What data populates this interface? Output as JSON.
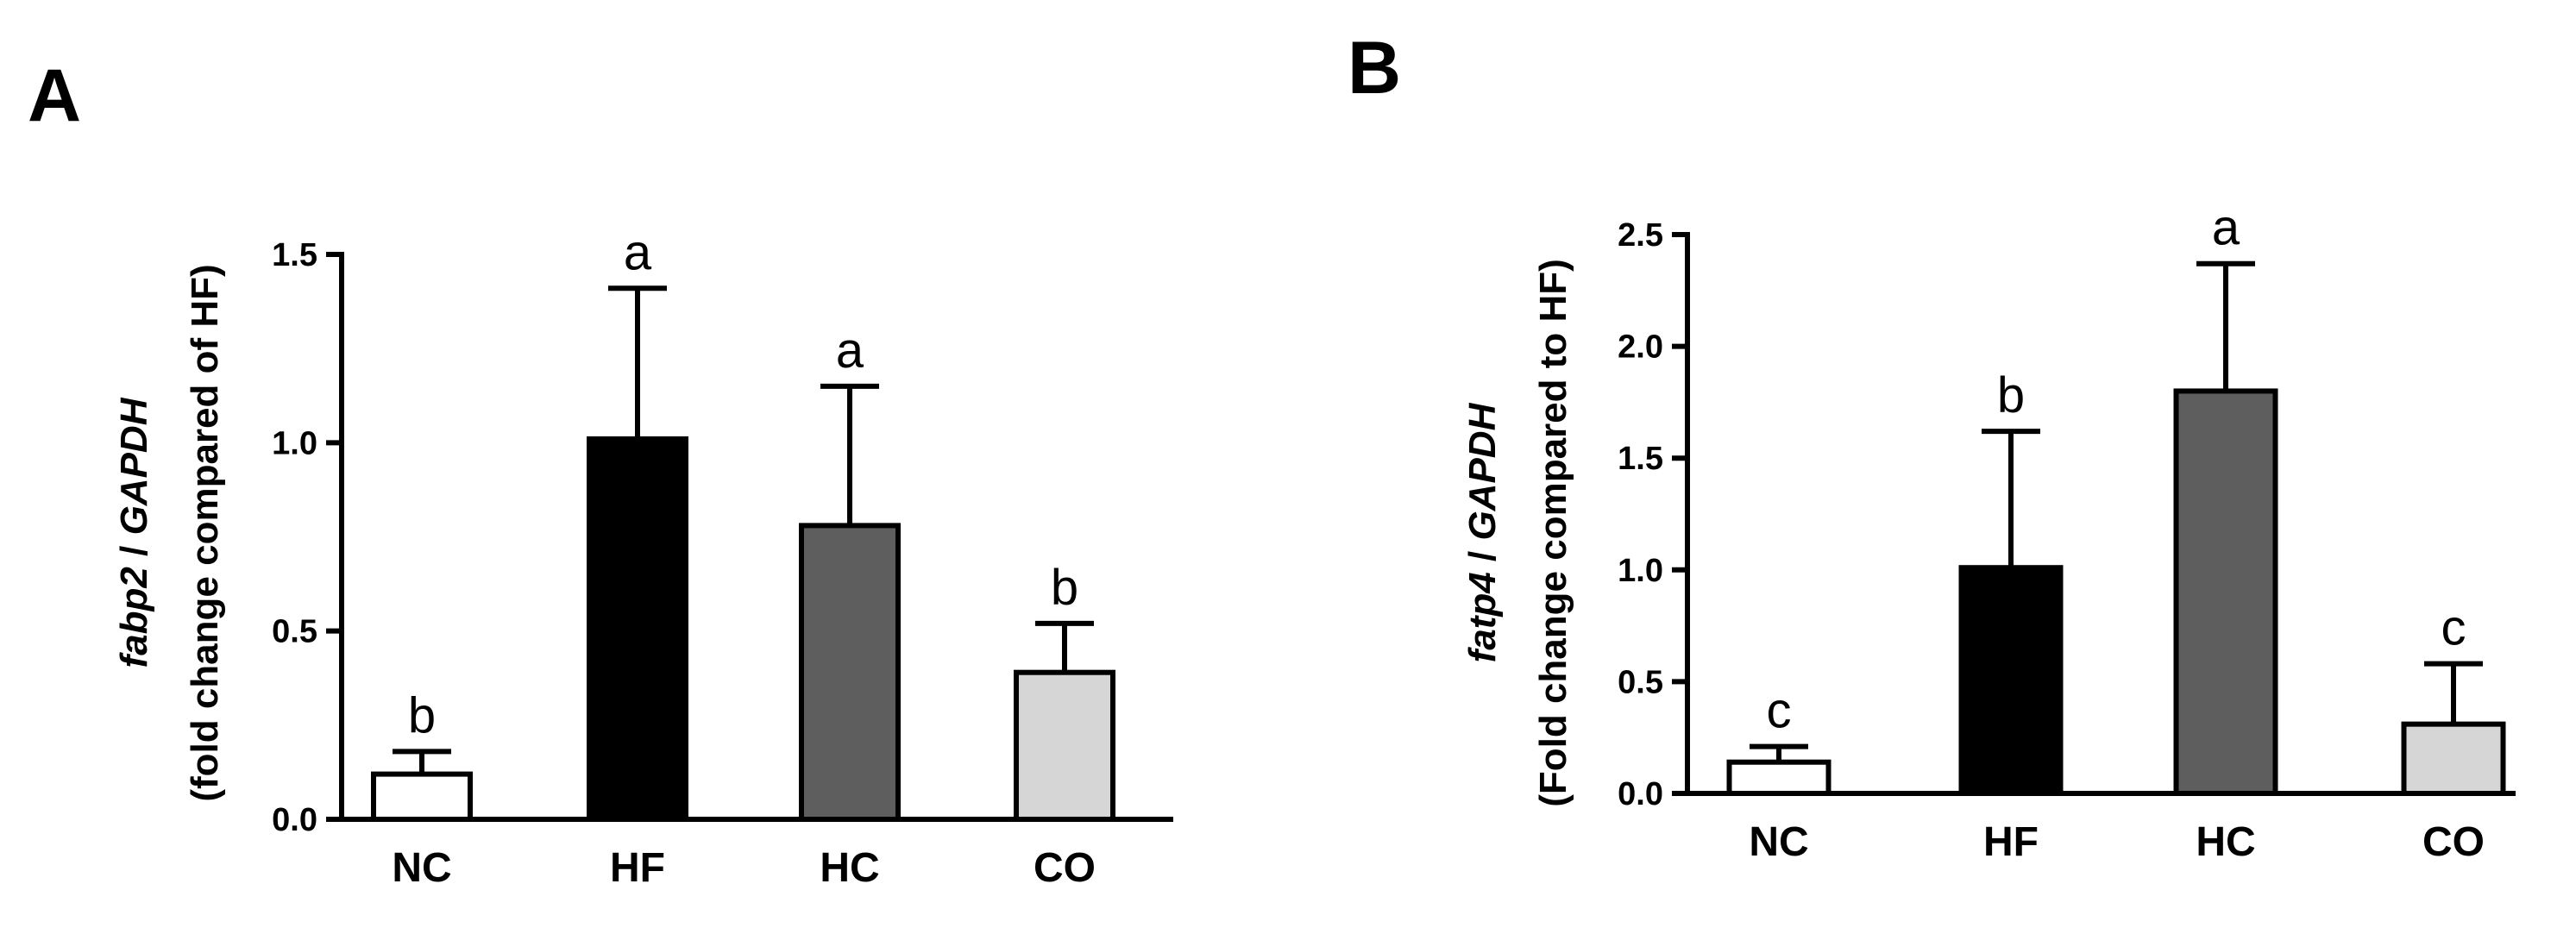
{
  "chart_data": [
    {
      "type": "bar",
      "panel": "A",
      "categories": [
        "NC",
        "HF",
        "HC",
        "CO"
      ],
      "values": [
        0.12,
        1.01,
        0.78,
        0.39
      ],
      "errors": [
        0.06,
        0.4,
        0.37,
        0.13
      ],
      "significance": [
        "b",
        "a",
        "a",
        "b"
      ],
      "colors": [
        "#ffffff",
        "#000000",
        "#5e5e5e",
        "#d6d6d6"
      ],
      "ylabel_gene": "fabp2",
      "ylabel_sep": " / ",
      "ylabel_ref": "GAPDH",
      "ylabel_line2": "(fold change compared of HF)",
      "ylim": [
        0,
        1.5
      ],
      "yticks": [
        0.0,
        0.5,
        1.0,
        1.5
      ],
      "ytick_labels": [
        "0.0",
        "0.5",
        "1.0",
        "1.5"
      ],
      "grid": false
    },
    {
      "type": "bar",
      "panel": "B",
      "categories": [
        "NC",
        "HF",
        "HC",
        "CO"
      ],
      "values": [
        0.14,
        1.01,
        1.8,
        0.31
      ],
      "errors": [
        0.07,
        0.61,
        0.57,
        0.27
      ],
      "significance": [
        "c",
        "b",
        "a",
        "c"
      ],
      "colors": [
        "#ffffff",
        "#000000",
        "#5e5e5e",
        "#d6d6d6"
      ],
      "ylabel_gene": "fatp4",
      "ylabel_sep": " / ",
      "ylabel_ref": "GAPDH",
      "ylabel_line2": "(Fold change compared to HF)",
      "ylim": [
        0,
        2.5
      ],
      "yticks": [
        0.0,
        0.5,
        1.0,
        1.5,
        2.0,
        2.5
      ],
      "ytick_labels": [
        "0.0",
        "0.5",
        "1.0",
        "1.5",
        "2.0",
        "2.5"
      ],
      "grid": false
    }
  ]
}
